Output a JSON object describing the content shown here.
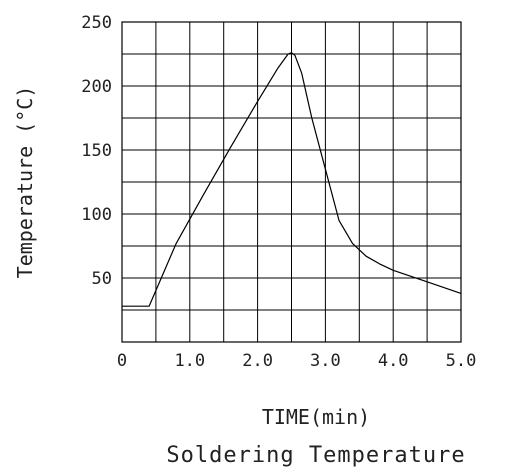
{
  "chart_data": {
    "type": "line",
    "title": "Soldering Temperature",
    "xlabel": "TIME(min)",
    "ylabel": "Temperature (°C)",
    "xlim": [
      0,
      5.0
    ],
    "ylim": [
      0,
      250
    ],
    "x_ticks": [
      0,
      1.0,
      2.0,
      3.0,
      4.0,
      5.0
    ],
    "x_tick_labels": [
      "0",
      "1.0",
      "2.0",
      "3.0",
      "4.0",
      "5.0"
    ],
    "y_ticks": [
      50,
      100,
      150,
      200,
      250
    ],
    "y_tick_labels": [
      "50",
      "100",
      "150",
      "200",
      "250"
    ],
    "grid": true,
    "series": [
      {
        "x": [
          0,
          0.4,
          0.8,
          1.2,
          1.6,
          2.0,
          2.3,
          2.45,
          2.5,
          2.55,
          2.65,
          2.8,
          3.0,
          3.2,
          3.4,
          3.6,
          3.8,
          4.0,
          4.5,
          5.0
        ],
        "y": [
          28,
          28,
          77,
          115,
          152,
          188,
          214,
          225,
          226,
          224,
          210,
          175,
          135,
          95,
          77,
          67,
          61,
          56,
          47,
          38
        ]
      }
    ]
  }
}
